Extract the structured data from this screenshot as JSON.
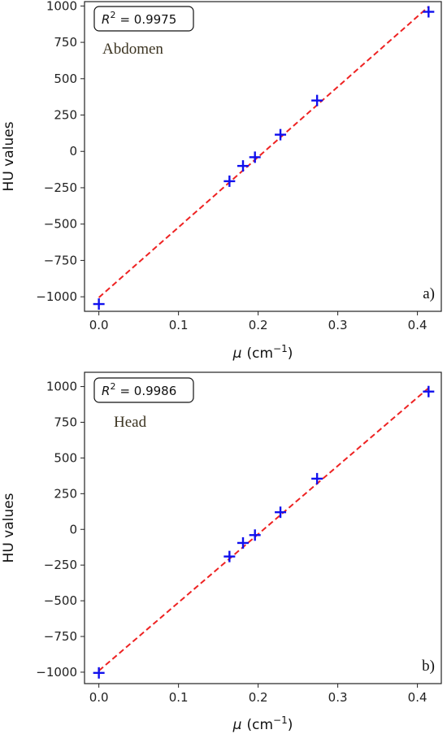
{
  "chart_data": [
    {
      "type": "scatter",
      "title": "",
      "panel_tag": "a)",
      "annotation": "Abdomen",
      "r2_symbol": "R",
      "r2_exp": "2",
      "r2_value": "= 0.9975",
      "xlabel_mu": "μ",
      "xlabel_unit": "(cm",
      "xlabel_exp": "−1",
      "xlabel_close": ")",
      "ylabel": "HU values",
      "xlim": [
        -0.018,
        0.43
      ],
      "ylim": [
        -1100,
        1030
      ],
      "xticks": [
        0.0,
        0.1,
        0.2,
        0.3,
        0.4
      ],
      "xtick_labels": [
        "0.0",
        "0.1",
        "0.2",
        "0.3",
        "0.4"
      ],
      "yticks": [
        -1000,
        -750,
        -500,
        -250,
        0,
        250,
        500,
        750,
        1000
      ],
      "ytick_labels": [
        "−1000",
        "−750",
        "−500",
        "−250",
        "0",
        "250",
        "500",
        "750",
        "1000"
      ],
      "series": [
        {
          "marker_color": "#1010ee",
          "x": [
            0.0,
            0.164,
            0.181,
            0.196,
            0.228,
            0.274,
            0.414
          ],
          "y": [
            -1050,
            -205,
            -100,
            -40,
            115,
            350,
            960
          ]
        }
      ],
      "fit": {
        "color": "#ee2222",
        "x": [
          0.0,
          0.414
        ],
        "y": [
          -1005,
          995
        ]
      }
    },
    {
      "type": "scatter",
      "title": "",
      "panel_tag": "b)",
      "annotation": "Head",
      "r2_symbol": "R",
      "r2_exp": "2",
      "r2_value": "= 0.9986",
      "xlabel_mu": "μ",
      "xlabel_unit": "(cm",
      "xlabel_exp": "−1",
      "xlabel_close": ")",
      "ylabel": "HU values",
      "xlim": [
        -0.018,
        0.43
      ],
      "ylim": [
        -1080,
        1100
      ],
      "xticks": [
        0.0,
        0.1,
        0.2,
        0.3,
        0.4
      ],
      "xtick_labels": [
        "0.0",
        "0.1",
        "0.2",
        "0.3",
        "0.4"
      ],
      "yticks": [
        -1000,
        -750,
        -500,
        -250,
        0,
        250,
        500,
        750,
        1000
      ],
      "ytick_labels": [
        "−1000",
        "−750",
        "−500",
        "−250",
        "0",
        "250",
        "500",
        "750",
        "1000"
      ],
      "series": [
        {
          "marker_color": "#1010ee",
          "x": [
            0.0,
            0.164,
            0.181,
            0.196,
            0.228,
            0.274,
            0.414
          ],
          "y": [
            -1005,
            -190,
            -95,
            -40,
            120,
            355,
            965
          ]
        }
      ],
      "fit": {
        "color": "#ee2222",
        "x": [
          0.0,
          0.414
        ],
        "y": [
          -990,
          990
        ]
      }
    }
  ]
}
